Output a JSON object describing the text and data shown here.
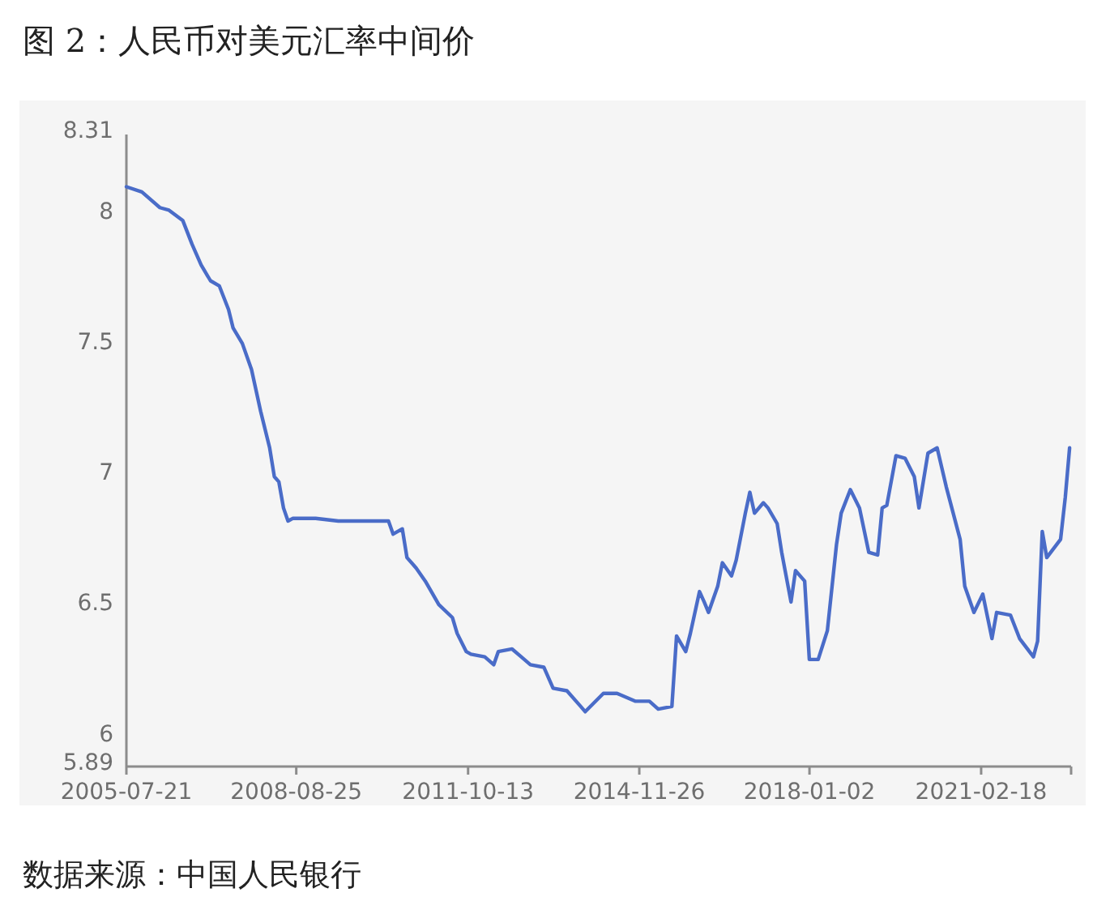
{
  "chart_data": {
    "type": "line",
    "title": "图 2：人民币对美元汇率中间价",
    "annotations": [
      "数据来源：中国人民银行"
    ],
    "x": [
      "2005-07-21",
      "2005-11",
      "2006-03",
      "2006-05",
      "2006-08",
      "2006-10",
      "2006-12",
      "2007-02",
      "2007-04",
      "2007-06",
      "2007-07",
      "2007-09",
      "2007-11",
      "2008-01",
      "2008-03",
      "2008-04",
      "2008-05",
      "2008-06",
      "2008-07",
      "2008-08",
      "2008-10",
      "2009-01",
      "2009-06",
      "2009-12",
      "2010-05",
      "2010-06",
      "2010-08",
      "2010-09",
      "2010-11",
      "2011-01",
      "2011-04",
      "2011-07",
      "2011-08",
      "2011-10",
      "2011-11",
      "2012-02",
      "2012-04",
      "2012-05",
      "2012-08",
      "2012-10",
      "2012-12",
      "2013-03",
      "2013-05",
      "2013-08",
      "2013-11",
      "2013-12",
      "2014-04",
      "2014-07",
      "2014-11",
      "2015-02",
      "2015-04",
      "2015-07",
      "2015-08",
      "2015-10",
      "2015-11",
      "2016-01",
      "2016-02",
      "2016-03",
      "2016-05",
      "2016-06",
      "2016-08",
      "2016-09",
      "2016-11",
      "2016-12",
      "2017-01",
      "2017-03",
      "2017-04",
      "2017-06",
      "2017-07",
      "2017-09",
      "2017-10",
      "2017-12",
      "2018-01",
      "2018-03",
      "2018-05",
      "2018-07",
      "2018-08",
      "2018-10",
      "2018-12",
      "2019-02",
      "2019-04",
      "2019-05",
      "2019-06",
      "2019-08",
      "2019-10",
      "2019-12",
      "2020-01",
      "2020-03",
      "2020-05",
      "2020-07",
      "2020-10",
      "2020-11",
      "2021-01",
      "2021-03",
      "2021-05",
      "2021-06",
      "2021-09",
      "2021-11",
      "2022-02",
      "2022-03",
      "2022-04",
      "2022-05",
      "2022-08",
      "2022-09",
      "2022-09-30"
    ],
    "series": [
      {
        "color": "#4a6cc8",
        "values": [
          8.11,
          8.09,
          8.03,
          8.02,
          7.98,
          7.89,
          7.81,
          7.75,
          7.73,
          7.64,
          7.57,
          7.51,
          7.41,
          7.25,
          7.11,
          7.0,
          6.98,
          6.88,
          6.83,
          6.84,
          6.84,
          6.84,
          6.83,
          6.83,
          6.83,
          6.78,
          6.8,
          6.69,
          6.65,
          6.6,
          6.51,
          6.46,
          6.4,
          6.33,
          6.32,
          6.31,
          6.28,
          6.33,
          6.34,
          6.31,
          6.28,
          6.27,
          6.19,
          6.18,
          6.12,
          6.1,
          6.17,
          6.17,
          6.14,
          6.14,
          6.11,
          6.12,
          6.39,
          6.33,
          6.4,
          6.56,
          6.52,
          6.48,
          6.58,
          6.67,
          6.62,
          6.68,
          6.86,
          6.94,
          6.86,
          6.9,
          6.88,
          6.82,
          6.71,
          6.52,
          6.64,
          6.6,
          6.3,
          6.3,
          6.41,
          6.74,
          6.86,
          6.95,
          6.88,
          6.71,
          6.7,
          6.88,
          6.89,
          7.08,
          7.07,
          7.0,
          6.88,
          7.09,
          7.11,
          6.96,
          6.76,
          6.58,
          6.48,
          6.55,
          6.38,
          6.48,
          6.47,
          6.38,
          6.31,
          6.37,
          6.79,
          6.69,
          6.76,
          6.92,
          7.11
        ]
      }
    ],
    "xlim": [
      "2005-07-21",
      "2022-10-10"
    ],
    "xticks": [
      "2005-07-21",
      "2008-08-25",
      "2011-10-13",
      "2014-11-26",
      "2018-01-02",
      "2021-02-18",
      {
        "value": "2022-10-10",
        "label": null
      }
    ],
    "ylim": [
      5.89,
      8.31
    ],
    "yticks": [
      5.89,
      6,
      6.5,
      7,
      7.5,
      8,
      8.31
    ],
    "marker": "none",
    "line_style": "solid"
  }
}
